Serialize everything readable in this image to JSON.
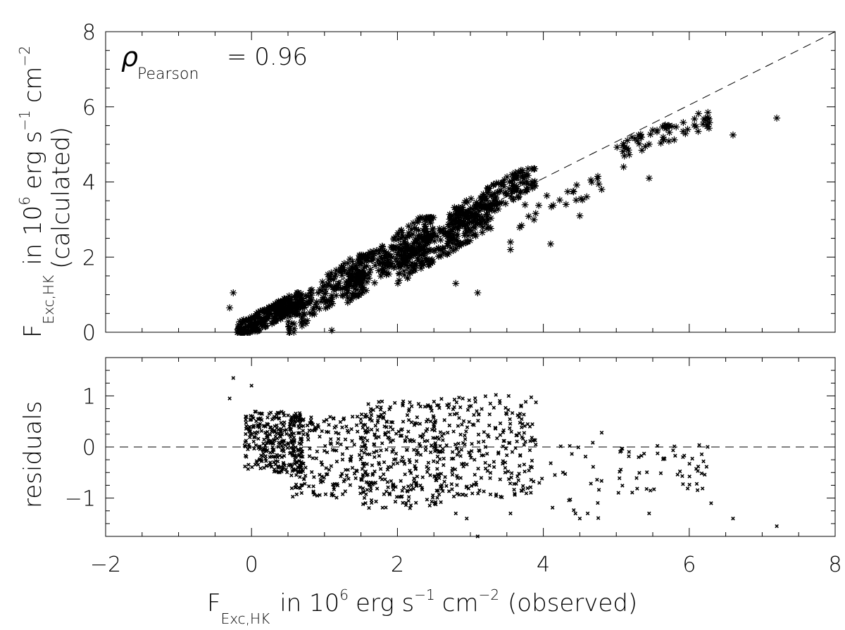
{
  "chart_data": [
    {
      "type": "scatter",
      "panel": "top",
      "marker": "asterisk",
      "xlim": [
        -2,
        8
      ],
      "ylim": [
        0,
        8
      ],
      "xticks": [
        -2,
        0,
        2,
        4,
        6,
        8
      ],
      "yticks": [
        0,
        2,
        4,
        6,
        8
      ],
      "annotation": {
        "symbol": "ρ",
        "subscript": "Pearson",
        "text": "= 0.96"
      },
      "reference_line": "y = x",
      "clusters": [
        {
          "x": [
            -0.2,
            0.7
          ],
          "y": [
            0.0,
            0.9
          ],
          "n": 260
        },
        {
          "x": [
            0.5,
            1.6
          ],
          "y": [
            0.3,
            1.9
          ],
          "n": 180
        },
        {
          "x": [
            1.3,
            2.5
          ],
          "y": [
            1.2,
            2.9
          ],
          "n": 260
        },
        {
          "x": [
            2.0,
            3.3
          ],
          "y": [
            1.7,
            3.2
          ],
          "n": 240
        },
        {
          "x": [
            2.7,
            3.9
          ],
          "y": [
            2.9,
            4.2
          ],
          "n": 190
        },
        {
          "x": [
            3.6,
            4.8
          ],
          "y": [
            3.0,
            4.0
          ],
          "n": 25
        },
        {
          "x": [
            5.0,
            6.3
          ],
          "y": [
            4.8,
            5.7
          ],
          "n": 60
        }
      ],
      "outliers": [
        {
          "x": 6.6,
          "y": 5.25
        },
        {
          "x": 7.2,
          "y": 5.7
        },
        {
          "x": 5.45,
          "y": 4.1
        },
        {
          "x": 5.1,
          "y": 4.4
        },
        {
          "x": 4.1,
          "y": 2.35
        },
        {
          "x": 3.55,
          "y": 2.2
        },
        {
          "x": 3.55,
          "y": 2.4
        },
        {
          "x": 4.5,
          "y": 3.1
        },
        {
          "x": 2.8,
          "y": 1.3
        },
        {
          "x": 3.1,
          "y": 1.05
        },
        {
          "x": 1.1,
          "y": 0.05
        },
        {
          "x": -0.3,
          "y": 0.65
        },
        {
          "x": -0.25,
          "y": 1.05
        },
        {
          "x": 6.25,
          "y": 5.7
        },
        {
          "x": 4.8,
          "y": 3.8
        }
      ]
    },
    {
      "type": "scatter",
      "panel": "bottom",
      "marker": "x",
      "xlabel_prefix": "F",
      "xlabel_sub": "Exc,HK",
      "xlabel_text": "in 10",
      "xlabel_sup1": "6",
      "xlabel_mid": "erg s",
      "xlabel_sup2": "−1",
      "xlabel_cm": "cm",
      "xlabel_sup3": "−2",
      "xlabel_tail": "(observed)",
      "ylabel": "residuals",
      "xlim": [
        -2,
        8
      ],
      "ylim": [
        -1.75,
        1.75
      ],
      "xticks": [
        -2,
        0,
        2,
        4,
        6,
        8
      ],
      "yticks": [
        -1,
        0,
        1
      ],
      "reference_line": "y = 0",
      "clusters": [
        {
          "x": [
            -0.1,
            0.7
          ],
          "y": [
            -0.5,
            0.7
          ],
          "n": 300
        },
        {
          "x": [
            0.5,
            1.6
          ],
          "y": [
            -1.0,
            0.6
          ],
          "n": 200
        },
        {
          "x": [
            1.5,
            2.6
          ],
          "y": [
            -1.2,
            0.9
          ],
          "n": 300
        },
        {
          "x": [
            2.5,
            3.9
          ],
          "y": [
            -1.0,
            1.0
          ],
          "n": 260
        },
        {
          "x": [
            3.9,
            4.8
          ],
          "y": [
            -1.4,
            0.1
          ],
          "n": 25
        },
        {
          "x": [
            5.0,
            6.3
          ],
          "y": [
            -0.9,
            0.1
          ],
          "n": 55
        }
      ],
      "outliers": [
        {
          "x": -0.25,
          "y": 1.35
        },
        {
          "x": -0.3,
          "y": 0.95
        },
        {
          "x": 0.0,
          "y": 1.2
        },
        {
          "x": 7.2,
          "y": -1.55
        },
        {
          "x": 6.6,
          "y": -1.4
        },
        {
          "x": 6.3,
          "y": -1.1
        },
        {
          "x": 5.45,
          "y": -1.3
        },
        {
          "x": 4.5,
          "y": -1.4
        },
        {
          "x": 3.55,
          "y": -1.3
        },
        {
          "x": 3.1,
          "y": -1.75
        },
        {
          "x": 2.8,
          "y": -1.3
        },
        {
          "x": 2.95,
          "y": -1.4
        },
        {
          "x": 4.8,
          "y": 0.28
        },
        {
          "x": 3.35,
          "y": 1.02
        }
      ]
    }
  ],
  "top_ylabel": {
    "prefix": "F",
    "sub": "Exc,HK",
    "line1_text": "in 10",
    "sup1": "6",
    "mid": "erg s",
    "sup2": "−1",
    "cm": "cm",
    "sup3": "−2",
    "line2": "(calculated)"
  }
}
